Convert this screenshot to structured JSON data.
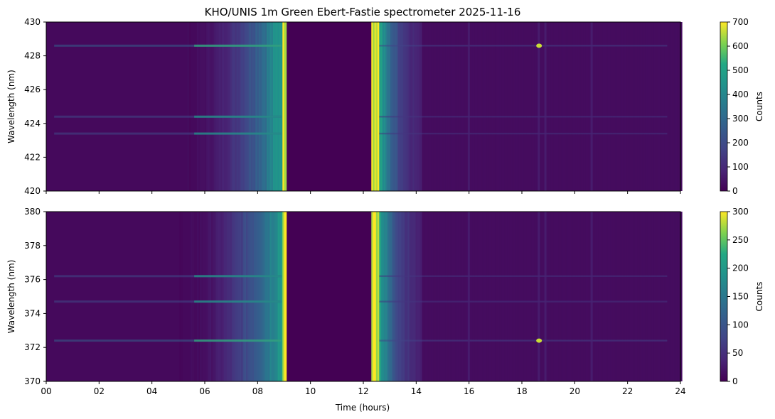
{
  "chart_data": {
    "title": "KHO/UNIS 1m Green Ebert-Fastie spectrometer 2025-11-16",
    "xlabel": "Time (hours)",
    "xlim": [
      0,
      24
    ],
    "x_ticks": [
      "00",
      "02",
      "04",
      "06",
      "08",
      "10",
      "12",
      "14",
      "16",
      "18",
      "20",
      "22",
      "24"
    ],
    "colormap": "viridis",
    "panels": [
      {
        "type": "heatmap",
        "ylabel": "Wavelength (nm)",
        "ylim": [
          420,
          430
        ],
        "y_ticks": [
          420,
          422,
          424,
          426,
          428,
          430
        ],
        "colorbar": {
          "label": "Counts",
          "range": [
            0,
            700
          ],
          "ticks": [
            0,
            100,
            200,
            300,
            400,
            500,
            600,
            700
          ]
        },
        "no_data_interval_hours": [
          9.1,
          12.3
        ],
        "emission_lines_nm": [
          428.6,
          424.4,
          423.4
        ],
        "bright_spots": [
          {
            "time_h": 18.65,
            "wavelength_nm": 428.6
          }
        ]
      },
      {
        "type": "heatmap",
        "ylabel": "Wavelength (nm)",
        "ylim": [
          370,
          380
        ],
        "y_ticks": [
          370,
          372,
          374,
          376,
          378,
          380
        ],
        "colorbar": {
          "label": "Counts",
          "range": [
            0,
            300
          ],
          "ticks": [
            0,
            50,
            100,
            150,
            200,
            250,
            300
          ]
        },
        "no_data_interval_hours": [
          9.1,
          12.3
        ],
        "emission_lines_nm": [
          372.4,
          376.2,
          374.7
        ],
        "bright_spots": [
          {
            "time_h": 18.65,
            "wavelength_nm": 372.4
          }
        ]
      }
    ]
  }
}
